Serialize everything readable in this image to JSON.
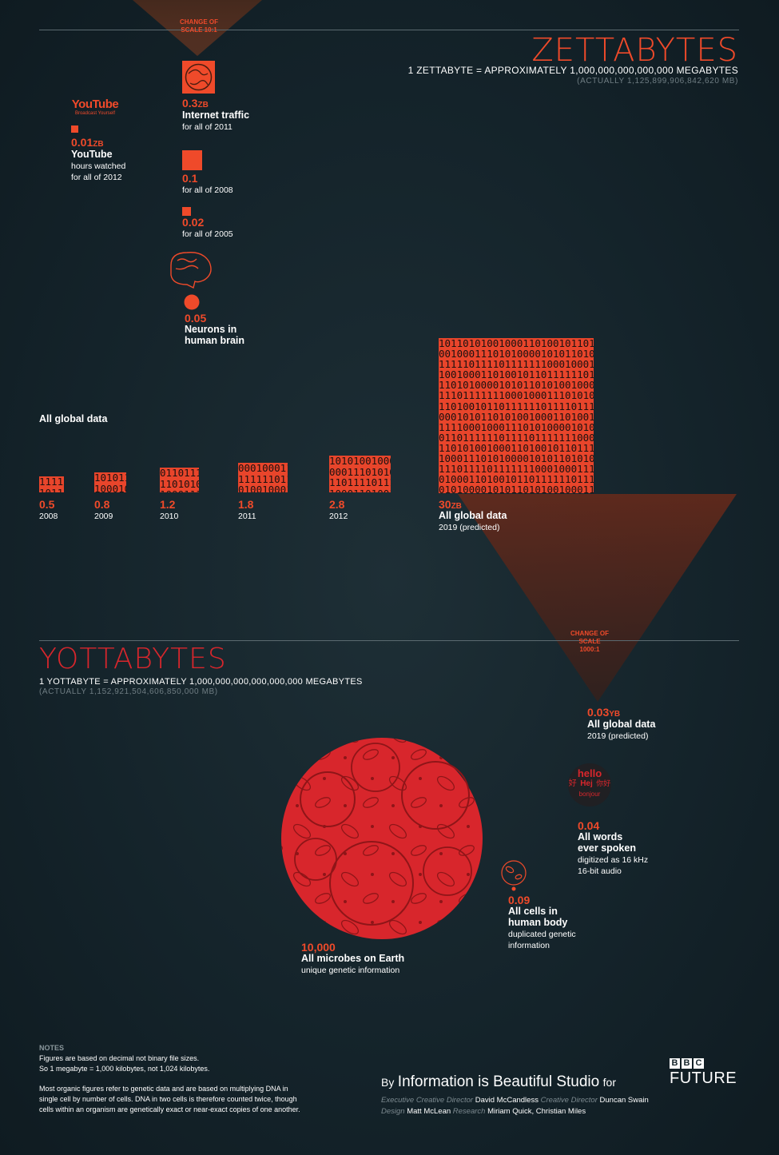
{
  "zettabytes": {
    "title": "ZETTABYTES",
    "definition": "1 ZETTABYTE = APPROXIMATELY 1,000,000,000,000,000 MEGABYTES",
    "actual": "(ACTUALLY 1,125,899,906,842,620 MB)"
  },
  "yottabytes": {
    "title": "YOTTABYTES",
    "definition": "1 YOTTABYTE = APPROXIMATELY 1,000,000,000,000,000,000 MEGABYTES",
    "actual": "(ACTUALLY 1,152,921,504,606,850,000 MB)"
  },
  "scale_change_1": "CHANGE OF SCALE 10:1",
  "scale_change_2": "CHANGE OF SCALE 1000:1",
  "global_data_label": "All global data",
  "items_zb": {
    "youtube": {
      "logo_main": "YouTube",
      "logo_tag": "Broadcast Yourself",
      "value": "0.01",
      "unit": "ZB",
      "label": "YouTube",
      "sub1": "hours watched",
      "sub2": "for all of 2012"
    },
    "internet": {
      "value": "0.3",
      "unit": "ZB",
      "label": "Internet traffic",
      "sub1": "for all of 2011"
    },
    "internet_2008": {
      "value": "0.1",
      "sub1": "for all of 2008"
    },
    "internet_2005": {
      "value": "0.02",
      "sub1": "for all of 2005"
    },
    "neurons": {
      "value": "0.05",
      "label1": "Neurons in",
      "label2": "human brain"
    }
  },
  "global_bars": [
    {
      "value": "0.5",
      "year": "2008"
    },
    {
      "value": "0.8",
      "year": "2009"
    },
    {
      "value": "1.2",
      "year": "2010"
    },
    {
      "value": "1.8",
      "year": "2011"
    },
    {
      "value": "2.8",
      "year": "2012"
    }
  ],
  "global_2019": {
    "value": "30",
    "unit": "ZB",
    "label": "All global data",
    "sub": "2019 (predicted)"
  },
  "items_yb": {
    "global": {
      "value": "0.03",
      "unit": "YB",
      "label": "All global data",
      "sub": "2019 (predicted)"
    },
    "words": {
      "value": "0.04",
      "label1": "All words",
      "label2": "ever spoken",
      "sub1": "digitized as 16 kHz",
      "sub2": "16-bit audio",
      "cloud_words": [
        "hello",
        "好",
        "Hej",
        "你好",
        "bonjour"
      ]
    },
    "cells": {
      "value": "0.09",
      "label1": "All cells in",
      "label2": "human body",
      "sub1": "duplicated genetic",
      "sub2": "information"
    },
    "microbes": {
      "value": "10,000",
      "label": "All microbes on Earth",
      "sub": "unique genetic information"
    }
  },
  "notes": {
    "heading": "NOTES",
    "line1": "Figures are based on decimal not binary file sizes.",
    "line2": "So 1 megabyte = 1,000 kilobytes, not 1,024 kilobytes.",
    "line3": "Most organic figures refer to genetic data and are based on multiplying DNA in",
    "line4": "single cell by number of cells. DNA in two cells is therefore counted twice, though",
    "line5": "cells within an organism are genetically exact or near-exact copies of one another."
  },
  "credits": {
    "by": "By",
    "studio": "Information is Beautiful Studio",
    "for": "for",
    "bbc_letters": [
      "B",
      "B",
      "C"
    ],
    "future": "FUTURE",
    "role1": "Executive Creative Director",
    "name1": "David McCandless",
    "role2": "Creative Director",
    "name2": "Duncan Swain",
    "role3": "Design",
    "name3": "Matt McLean",
    "role4": "Research",
    "name4": "Miriam Quick, Christian Miles"
  },
  "colors": {
    "accent": "#ef4a2a",
    "bar": "#e8452b",
    "background": "#14232a",
    "microbes": "#d8262c"
  },
  "chart_data": {
    "type": "bar",
    "title": "All global data",
    "categories": [
      "2008",
      "2009",
      "2010",
      "2011",
      "2012",
      "2019 (predicted)"
    ],
    "values": [
      0.5,
      0.8,
      1.2,
      1.8,
      2.8,
      30
    ],
    "unit": "ZB",
    "comparisons_zb": [
      {
        "name": "YouTube hours watched for all of 2012",
        "value": 0.01
      },
      {
        "name": "Internet traffic for all of 2011",
        "value": 0.3
      },
      {
        "name": "Internet traffic for all of 2008",
        "value": 0.1
      },
      {
        "name": "Internet traffic for all of 2005",
        "value": 0.02
      },
      {
        "name": "Neurons in human brain",
        "value": 0.05
      }
    ],
    "comparisons_yb": [
      {
        "name": "All global data 2019 (predicted)",
        "value": 0.03
      },
      {
        "name": "All words ever spoken",
        "value": 0.04
      },
      {
        "name": "All cells in human body",
        "value": 0.09
      },
      {
        "name": "All microbes on Earth",
        "value": 10000
      }
    ]
  }
}
